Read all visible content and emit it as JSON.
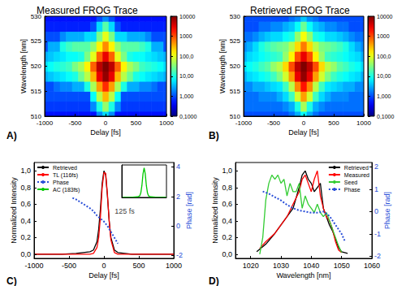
{
  "chart_data": [
    {
      "type": "heatmap",
      "title": "Measured FROG Trace",
      "annotations": [
        {
          "text": "A)"
        }
      ],
      "x_label": "Delay [fs]",
      "y_label": "Wavelength [nm]",
      "xlim": [
        -1000,
        1000
      ],
      "xticks": [
        -1000,
        -500,
        0,
        500,
        1000
      ],
      "ylim": [
        510,
        530
      ],
      "yticks": [
        510,
        515,
        520,
        525,
        530
      ],
      "grid": false,
      "x": [
        -1000,
        -900,
        -800,
        -700,
        -600,
        -500,
        -400,
        -300,
        -200,
        -100,
        0,
        100,
        200,
        300,
        400,
        500,
        600,
        700,
        800,
        900,
        1000
      ],
      "y": [
        510,
        512,
        514,
        516,
        518,
        520,
        522,
        524,
        526,
        528,
        530
      ],
      "cells": [
        [
          0.5,
          0.5,
          0.5,
          0.5,
          0.5,
          0.5,
          0.5,
          0.5,
          0.5,
          2,
          5,
          2,
          0.5,
          0.5,
          0.5,
          0.5,
          0.5,
          0.5,
          0.5,
          0.5,
          0.5
        ],
        [
          0.8,
          0.8,
          0.8,
          0.8,
          0.8,
          0.8,
          0.8,
          0.8,
          2,
          10,
          40,
          10,
          2,
          0.8,
          0.8,
          0.8,
          0.8,
          0.8,
          0.8,
          0.8,
          0.8
        ],
        [
          1,
          1,
          1,
          1,
          1,
          1,
          1,
          1,
          8,
          60,
          300,
          60,
          8,
          1,
          1,
          1,
          1,
          1,
          1,
          1,
          1
        ],
        [
          1,
          1,
          1.5,
          2,
          2,
          3,
          3,
          10,
          50,
          400,
          1500,
          400,
          50,
          10,
          3,
          3,
          2,
          2,
          1.5,
          1,
          1
        ],
        [
          3,
          4,
          5,
          6,
          8,
          10,
          25,
          60,
          300,
          3000,
          8000,
          3000,
          300,
          60,
          25,
          10,
          8,
          6,
          5,
          4,
          3
        ],
        [
          5,
          8,
          10,
          12,
          15,
          30,
          50,
          150,
          800,
          5000,
          10000,
          5000,
          800,
          150,
          50,
          30,
          15,
          12,
          10,
          8,
          5
        ],
        [
          3,
          4,
          5,
          6,
          8,
          8,
          10,
          30,
          100,
          800,
          3000,
          800,
          100,
          30,
          10,
          8,
          8,
          6,
          5,
          4,
          3
        ],
        [
          1,
          3,
          3,
          10,
          15,
          20,
          20,
          20,
          40,
          150,
          500,
          150,
          40,
          20,
          20,
          20,
          15,
          10,
          3,
          3,
          1
        ],
        [
          1,
          1,
          1,
          2,
          3,
          3,
          3,
          5,
          5,
          30,
          100,
          30,
          5,
          5,
          3,
          3,
          3,
          2,
          1,
          1,
          1
        ],
        [
          0.6,
          0.6,
          0.6,
          0.6,
          0.6,
          0.6,
          0.6,
          0.6,
          1,
          5,
          20,
          5,
          1,
          0.6,
          0.6,
          0.6,
          0.6,
          0.6,
          0.6,
          0.6,
          0.6
        ],
        [
          0.5,
          0.5,
          0.5,
          0.5,
          0.5,
          0.5,
          0.5,
          0.5,
          0.5,
          1,
          2,
          1,
          0.5,
          0.5,
          0.5,
          0.5,
          0.5,
          0.5,
          0.5,
          0.5,
          0.5
        ]
      ],
      "colorbar": {
        "log": true,
        "range": [
          0.1,
          10000
        ],
        "ticks": [
          10000,
          1000,
          {
            "value": 100,
            "label": "100,0"
          },
          {
            "value": 10,
            "label": "10,00"
          },
          {
            "value": 1,
            "label": "1,000"
          },
          {
            "value": 0.1,
            "label": "0,1000"
          }
        ]
      }
    },
    {
      "type": "heatmap",
      "title": "Retrieved FROG Trace",
      "annotations": [
        {
          "text": "B)"
        }
      ],
      "x_label": "Delay [fs]",
      "y_label": "Wavelength [nm]",
      "xlim": [
        -1000,
        1000
      ],
      "xticks": [
        -1000,
        -500,
        0,
        500,
        1000
      ],
      "ylim": [
        510,
        530
      ],
      "yticks": [
        510,
        515,
        520,
        525,
        530
      ],
      "grid": false,
      "x": [
        -1000,
        -900,
        -800,
        -700,
        -600,
        -500,
        -400,
        -300,
        -200,
        -100,
        0,
        100,
        200,
        300,
        400,
        500,
        600,
        700,
        800,
        900,
        1000
      ],
      "y": [
        510,
        512,
        514,
        516,
        518,
        520,
        522,
        524,
        526,
        528,
        530
      ],
      "cells": [
        [
          1,
          1,
          1,
          1,
          1,
          1,
          1,
          1,
          1.5,
          3,
          8,
          3,
          1.5,
          1,
          1,
          1,
          1,
          1,
          1,
          1,
          1
        ],
        [
          1.5,
          1.5,
          1.5,
          1.5,
          1.5,
          1.5,
          1.5,
          2,
          3,
          10,
          50,
          10,
          3,
          2,
          1.5,
          1.5,
          1.5,
          1.5,
          1.5,
          1.5,
          1.5
        ],
        [
          1.5,
          1.5,
          1.5,
          2,
          2,
          2,
          3,
          5,
          15,
          80,
          400,
          80,
          15,
          5,
          3,
          2,
          2,
          2,
          1.5,
          1.5,
          1.5
        ],
        [
          2,
          2,
          3,
          3,
          4,
          5,
          6,
          15,
          60,
          500,
          2000,
          500,
          60,
          15,
          6,
          5,
          4,
          3,
          3,
          2,
          2
        ],
        [
          3,
          5,
          6,
          8,
          10,
          15,
          30,
          80,
          400,
          3000,
          8000,
          3000,
          400,
          80,
          30,
          15,
          10,
          8,
          6,
          5,
          3
        ],
        [
          5,
          8,
          10,
          15,
          20,
          40,
          60,
          200,
          1000,
          5000,
          10000,
          5000,
          1000,
          200,
          60,
          40,
          20,
          15,
          10,
          8,
          5
        ],
        [
          3,
          5,
          6,
          8,
          10,
          12,
          15,
          40,
          150,
          1000,
          3000,
          1000,
          150,
          40,
          15,
          12,
          10,
          8,
          6,
          5,
          3
        ],
        [
          2,
          3,
          5,
          10,
          15,
          20,
          25,
          30,
          60,
          200,
          600,
          200,
          60,
          30,
          25,
          20,
          15,
          10,
          5,
          3,
          2
        ],
        [
          1.5,
          1.5,
          2,
          3,
          4,
          5,
          5,
          8,
          10,
          40,
          120,
          40,
          10,
          8,
          5,
          5,
          4,
          3,
          2,
          1.5,
          1.5
        ],
        [
          1,
          1,
          1,
          1.5,
          1.5,
          2,
          2,
          3,
          4,
          8,
          25,
          8,
          4,
          3,
          2,
          2,
          1.5,
          1.5,
          1,
          1,
          1
        ],
        [
          1,
          1,
          1,
          1,
          1,
          1,
          1,
          1,
          1.5,
          2,
          4,
          2,
          1.5,
          1,
          1,
          1,
          1,
          1,
          1,
          1,
          1
        ]
      ],
      "colorbar": {
        "log": true,
        "range": [
          0.1,
          10000
        ],
        "ticks": [
          10000,
          1000,
          {
            "value": 100,
            "label": "100,0"
          },
          {
            "value": 10,
            "label": "10,00"
          },
          {
            "value": 1,
            "label": "1,000"
          },
          {
            "value": 0.1,
            "label": "0,1000"
          }
        ]
      }
    },
    {
      "type": "line",
      "annotations": [
        {
          "text": "C)"
        },
        {
          "text": "125 fs",
          "x": 130,
          "y": 0.52
        }
      ],
      "x_label": "Delay [fs]",
      "y_label": "Normalized Intensity",
      "y2_label": "Phase [rad]",
      "xlim": [
        -1000,
        1000
      ],
      "xticks": [
        -1000,
        -500,
        0,
        500,
        1000
      ],
      "ylim": [
        -0.05,
        1.1
      ],
      "yticks": [
        {
          "value": 0,
          "label": "0,0"
        },
        {
          "value": 0.2,
          "label": "0,2"
        },
        {
          "value": 0.4,
          "label": "0,4"
        },
        {
          "value": 0.6,
          "label": "0,6"
        },
        {
          "value": 0.8,
          "label": "0,8"
        },
        {
          "value": 1,
          "label": "1,0"
        }
      ],
      "y2lim": [
        -2.2,
        4.3
      ],
      "y2ticks": [
        -2,
        0,
        2,
        4
      ],
      "grid": false,
      "legend": "upper left",
      "series": [
        {
          "name": "Retrieved",
          "color": "#000000",
          "line_style": "solid",
          "x": [
            -1000,
            -600,
            -400,
            -300,
            -200,
            -150,
            -100,
            -75,
            -50,
            -25,
            0,
            25,
            50,
            75,
            100,
            150,
            200,
            300,
            400,
            600,
            1000
          ],
          "values": [
            0,
            0,
            0.01,
            0.02,
            0.03,
            0.05,
            0.15,
            0.3,
            0.55,
            0.85,
            1.0,
            0.95,
            0.7,
            0.4,
            0.2,
            0.05,
            0.02,
            0.01,
            0,
            0,
            0
          ]
        },
        {
          "name": "TL (116fs)",
          "color": "#ff0000",
          "line_style": "solid",
          "x": [
            -1000,
            -600,
            -400,
            -300,
            -200,
            -150,
            -100,
            -75,
            -50,
            -25,
            0,
            25,
            50,
            75,
            100,
            150,
            200,
            300,
            400,
            600,
            1000
          ],
          "values": [
            0,
            0,
            0,
            0,
            0,
            0.01,
            0.08,
            0.2,
            0.45,
            0.8,
            0.98,
            0.97,
            0.72,
            0.4,
            0.17,
            0.02,
            0,
            0,
            0,
            0,
            0
          ]
        },
        {
          "name": "Phase",
          "color": "#2a4fd8",
          "line_style": "dotted",
          "axis": "y2",
          "x": [
            -450,
            -400,
            -300,
            -200,
            -150,
            -100,
            -50,
            0,
            50,
            100,
            150,
            200
          ],
          "values": [
            1.9,
            1.8,
            1.5,
            1.2,
            1.0,
            0.7,
            0.5,
            0.3,
            0.0,
            -0.4,
            -0.8,
            -1.2
          ]
        }
      ],
      "inset": {
        "xlim": [
          -1000,
          1000
        ],
        "ylim": [
          0,
          1.1
        ],
        "tick_labels": false,
        "series": [
          {
            "name": "AC (183fs)",
            "color": "#00c800",
            "line_style": "solid",
            "x": [
              -1000,
              -500,
              -300,
              -200,
              -150,
              -100,
              -50,
              0,
              50,
              100,
              150,
              200,
              300,
              500,
              1000
            ],
            "values": [
              0,
              0.01,
              0.02,
              0.05,
              0.15,
              0.4,
              0.8,
              1.0,
              0.8,
              0.4,
              0.15,
              0.05,
              0.02,
              0.01,
              0
            ]
          }
        ]
      }
    },
    {
      "type": "line",
      "annotations": [
        {
          "text": "D)"
        }
      ],
      "x_label": "Wavelength [nm]",
      "y_label": "Normalized Intensity",
      "y2_label": "Phase [rad]",
      "xlim": [
        1015,
        1060
      ],
      "xticks": [
        1020,
        1030,
        1040,
        1050,
        1060
      ],
      "ylim": [
        -0.05,
        1.1
      ],
      "yticks": [
        {
          "value": 0,
          "label": "0,0"
        },
        {
          "value": 0.2,
          "label": "0,2"
        },
        {
          "value": 0.4,
          "label": "0,4"
        },
        {
          "value": 0.6,
          "label": "0,6"
        },
        {
          "value": 0.8,
          "label": "0,8"
        },
        {
          "value": 1,
          "label": "1,0"
        }
      ],
      "y2lim": [
        -2.1,
        2.2
      ],
      "y2ticks": [
        -2,
        -1,
        0,
        1,
        2
      ],
      "grid": false,
      "legend": "upper right",
      "series": [
        {
          "name": "Retrieved",
          "color": "#000000",
          "line_style": "solid",
          "x": [
            1022,
            1025,
            1028,
            1030,
            1032,
            1034,
            1036,
            1037,
            1038,
            1039,
            1040,
            1041,
            1042,
            1043,
            1044,
            1045,
            1046,
            1047,
            1048,
            1049,
            1050,
            1052
          ],
          "values": [
            0.03,
            0.12,
            0.25,
            0.35,
            0.45,
            0.55,
            0.8,
            0.95,
            1.0,
            0.9,
            0.85,
            0.75,
            0.8,
            0.85,
            0.55,
            0.45,
            0.35,
            0.28,
            0.18,
            0.08,
            0.03,
            0.01
          ]
        },
        {
          "name": "Measured",
          "color": "#ff0000",
          "line_style": "solid",
          "x": [
            1023,
            1025,
            1028,
            1030,
            1032,
            1034,
            1036,
            1037,
            1038,
            1039,
            1040,
            1041,
            1042,
            1043,
            1044,
            1045,
            1046,
            1047,
            1048,
            1049,
            1050
          ],
          "values": [
            0.07,
            0.15,
            0.25,
            0.35,
            0.45,
            0.6,
            0.75,
            0.9,
            0.95,
            0.85,
            0.75,
            0.9,
            1.0,
            0.7,
            0.55,
            0.45,
            0.4,
            0.3,
            0.15,
            0.05,
            0.02
          ]
        },
        {
          "name": "Seed",
          "color": "#33cc33",
          "line_style": "solid",
          "x": [
            1023,
            1024,
            1025,
            1026,
            1027,
            1028,
            1029,
            1030,
            1031,
            1032,
            1033,
            1034,
            1035,
            1036,
            1037,
            1038,
            1039,
            1040,
            1041,
            1042,
            1043,
            1044,
            1045,
            1046,
            1047,
            1048,
            1049,
            1050
          ],
          "values": [
            0,
            0.2,
            0.65,
            0.85,
            0.95,
            0.9,
            0.95,
            0.85,
            0.9,
            0.7,
            0.85,
            0.75,
            0.75,
            0.85,
            0.55,
            0.7,
            0.6,
            0.55,
            0.5,
            0.6,
            0.5,
            0.45,
            0.5,
            0.4,
            0.3,
            0.2,
            0.1,
            0.02
          ]
        },
        {
          "name": "Phase",
          "color": "#2a4fd8",
          "line_style": "dotted",
          "axis": "y2",
          "x": [
            1024,
            1026,
            1028,
            1030,
            1032,
            1034,
            1036,
            1038,
            1040,
            1042,
            1044,
            1046,
            1048,
            1050,
            1051
          ],
          "values": [
            0.9,
            0.8,
            0.65,
            0.5,
            0.3,
            0.15,
            0.05,
            0.0,
            -0.05,
            -0.05,
            0.0,
            -0.2,
            -0.6,
            -1.0,
            -1.3
          ]
        }
      ]
    }
  ]
}
